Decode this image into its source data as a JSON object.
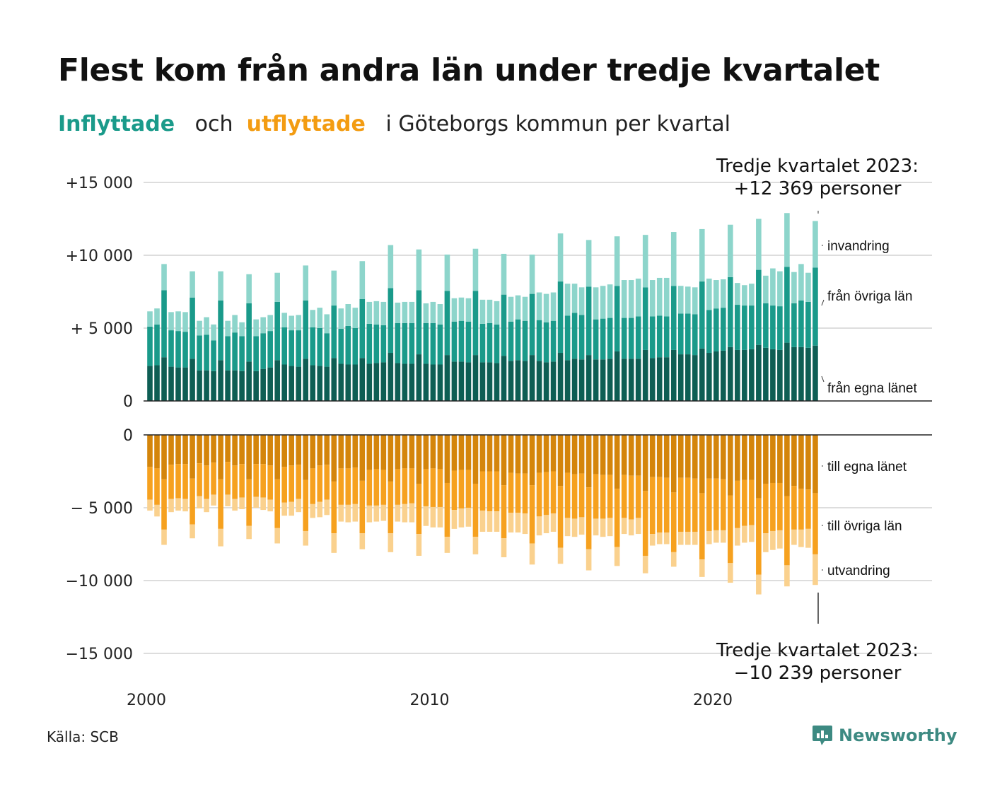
{
  "title": "Flest kom från andra län under tredje kvartalet",
  "subtitle": {
    "in_word": "Inflyttade",
    "and_word": "och",
    "out_word": "utflyttade",
    "rest": "i Göteborgs kommun per kvartal"
  },
  "colors": {
    "in_own": "#0e5e54",
    "in_other": "#1a9a8a",
    "in_imm": "#8dd5cb",
    "out_own": "#d4850b",
    "out_other": "#f6a11f",
    "out_emi": "#fad18e"
  },
  "annotation_top": {
    "line1": "Tredje kvartalet 2023:",
    "line2": "+12 369 personer"
  },
  "annotation_bottom": {
    "line1": "Tredje kvartalet 2023:",
    "line2": "−10 239 personer"
  },
  "source": "Källa: SCB",
  "brand": {
    "name": "Newsworthy",
    "icon": "newsworthy-logo-icon"
  },
  "chart_data": {
    "type": "bar",
    "stacked": true,
    "diverging": true,
    "x_start": "2000 Q1",
    "x_end": "2023 Q3",
    "x_tick_values": [
      2000,
      2010,
      2020
    ],
    "x_tick_labels": [
      "2000",
      "2010",
      "2020"
    ],
    "ylim_in": [
      0,
      15000
    ],
    "ylim_out": [
      -15000,
      0
    ],
    "y_ticks_in": [
      0,
      5000,
      10000,
      15000
    ],
    "y_tick_labels_in": [
      "0",
      "+ 5 000",
      "+10 000",
      "+15 000"
    ],
    "y_ticks_out": [
      0,
      -5000,
      -10000,
      -15000
    ],
    "y_tick_labels_out": [
      "0",
      "− 5 000",
      "−10 000",
      "−15 000"
    ],
    "grid": true,
    "series_in": [
      {
        "name": "från egna länet",
        "values": [
          2400,
          2450,
          3000,
          2350,
          2300,
          2300,
          2900,
          2100,
          2100,
          2050,
          2800,
          2100,
          2100,
          2050,
          2700,
          2050,
          2200,
          2300,
          2800,
          2500,
          2400,
          2350,
          2900,
          2450,
          2400,
          2350,
          2950,
          2550,
          2500,
          2500,
          2950,
          2550,
          2600,
          2650,
          3300,
          2600,
          2550,
          2550,
          3200,
          2550,
          2500,
          2500,
          3150,
          2700,
          2700,
          2650,
          3150,
          2650,
          2650,
          2600,
          3100,
          2750,
          2800,
          2750,
          3150,
          2750,
          2650,
          2700,
          3300,
          2800,
          2900,
          2850,
          3150,
          2850,
          2850,
          2900,
          3400,
          2900,
          2900,
          2900,
          3500,
          2950,
          3000,
          3000,
          3500,
          3200,
          3200,
          3150,
          3600,
          3300,
          3400,
          3450,
          3700,
          3500,
          3500,
          3550,
          3850,
          3650,
          3550,
          3500,
          4000,
          3700,
          3700,
          3650,
          3800
        ]
      },
      {
        "name": "från övriga län",
        "values": [
          2700,
          2800,
          4600,
          2500,
          2500,
          2450,
          4200,
          2400,
          2450,
          2100,
          4100,
          2350,
          2600,
          2400,
          4000,
          2400,
          2450,
          2500,
          4000,
          2550,
          2450,
          2500,
          4000,
          2600,
          2600,
          2300,
          3600,
          2400,
          2650,
          2500,
          4050,
          2750,
          2650,
          2550,
          4450,
          2750,
          2800,
          2800,
          4400,
          2800,
          2850,
          2750,
          4400,
          2750,
          2800,
          2800,
          4400,
          2650,
          2700,
          2650,
          4200,
          2700,
          2800,
          2750,
          4200,
          2800,
          2750,
          2800,
          4900,
          3050,
          3150,
          3050,
          4700,
          2750,
          2800,
          2800,
          4500,
          2800,
          2800,
          2900,
          4300,
          2850,
          2850,
          2800,
          4400,
          2800,
          2800,
          2800,
          4600,
          2950,
          2950,
          2950,
          4800,
          3100,
          3050,
          3000,
          5150,
          3050,
          3000,
          3000,
          5200,
          3000,
          3200,
          3150,
          5350
        ]
      },
      {
        "name": "invandring",
        "values": [
          1050,
          1100,
          1800,
          1250,
          1350,
          1350,
          1800,
          1000,
          1200,
          1100,
          2000,
          1050,
          1200,
          950,
          2000,
          1150,
          1100,
          1100,
          2000,
          1000,
          1000,
          1050,
          2400,
          1200,
          1400,
          1300,
          2400,
          1400,
          1500,
          1400,
          2600,
          1500,
          1600,
          1600,
          2950,
          1400,
          1450,
          1450,
          2800,
          1350,
          1450,
          1400,
          2500,
          1600,
          1600,
          1600,
          2900,
          1650,
          1600,
          1600,
          2800,
          1700,
          1650,
          1650,
          2700,
          1900,
          1950,
          1950,
          3300,
          2200,
          2000,
          1900,
          3200,
          2200,
          2250,
          2300,
          3400,
          2600,
          2600,
          2600,
          3600,
          2500,
          2600,
          2650,
          3700,
          1900,
          1850,
          1850,
          3600,
          2150,
          1950,
          1950,
          3600,
          1500,
          1400,
          1500,
          3500,
          1900,
          2550,
          2400,
          3700,
          2150,
          2500,
          2000,
          3200
        ]
      },
      {
        "name": "out_own",
        "values": [
          2200,
          2300,
          3050,
          2050,
          2000,
          2000,
          3000,
          1950,
          2100,
          1900,
          3050,
          1850,
          2100,
          2000,
          3050,
          2000,
          2000,
          2100,
          3050,
          2200,
          2100,
          2050,
          3100,
          2300,
          2100,
          2050,
          3200,
          2300,
          2300,
          2250,
          3150,
          2400,
          2350,
          2400,
          3200,
          2350,
          2300,
          2300,
          3350,
          2350,
          2300,
          2350,
          3300,
          2450,
          2400,
          2400,
          3350,
          2500,
          2500,
          2500,
          3450,
          2600,
          2650,
          2650,
          3450,
          2600,
          2550,
          2500,
          3500,
          2600,
          2700,
          2650,
          3600,
          2700,
          2750,
          2750,
          3700,
          2750,
          2800,
          2800,
          3850,
          2900,
          2900,
          2950,
          3950,
          2950,
          2950,
          3000,
          4000,
          3000,
          3000,
          3050,
          4150,
          3150,
          3100,
          3100,
          4350,
          3350,
          3300,
          3300,
          4200,
          3500,
          3700,
          3750,
          4000
        ]
      },
      {
        "name": "out_other",
        "values": [
          2250,
          2500,
          3450,
          2350,
          2350,
          2400,
          3150,
          2250,
          2300,
          2200,
          3400,
          2250,
          2300,
          2300,
          3200,
          2250,
          2300,
          2350,
          3350,
          2450,
          2500,
          2350,
          3500,
          2450,
          2500,
          2400,
          3550,
          2500,
          2500,
          2500,
          3600,
          2450,
          2500,
          2400,
          3550,
          2450,
          2450,
          2400,
          3450,
          2550,
          2650,
          2600,
          3700,
          2700,
          2650,
          2600,
          3650,
          2700,
          2750,
          2750,
          3650,
          2750,
          2700,
          2750,
          4000,
          3000,
          2950,
          2900,
          4250,
          3100,
          3050,
          3000,
          4250,
          3050,
          3000,
          2950,
          4000,
          2950,
          3000,
          2900,
          4450,
          3900,
          3800,
          3750,
          4100,
          3700,
          3700,
          3650,
          4550,
          3600,
          3550,
          3500,
          4650,
          3250,
          3150,
          3100,
          5250,
          3400,
          3300,
          3250,
          4750,
          3000,
          2800,
          2700,
          4200
        ]
      },
      {
        "name": "out_emi",
        "values": [
          750,
          800,
          1050,
          900,
          850,
          850,
          950,
          850,
          900,
          750,
          1200,
          800,
          800,
          800,
          900,
          750,
          850,
          800,
          1050,
          900,
          950,
          900,
          1000,
          950,
          1050,
          1050,
          1350,
          1150,
          1200,
          1200,
          1100,
          1150,
          1100,
          1100,
          1300,
          1150,
          1250,
          1300,
          1500,
          1350,
          1400,
          1400,
          1100,
          1300,
          1300,
          1300,
          1200,
          1450,
          1400,
          1400,
          1300,
          1350,
          1350,
          1400,
          1450,
          1300,
          1250,
          1250,
          1100,
          1250,
          1250,
          1200,
          1450,
          1150,
          1250,
          1250,
          1300,
          1100,
          1100,
          1100,
          1200,
          800,
          800,
          800,
          1000,
          900,
          900,
          900,
          1200,
          900,
          850,
          850,
          1350,
          1200,
          1150,
          1150,
          1350,
          1300,
          1300,
          1250,
          1450,
          1050,
          1200,
          1300,
          2100
        ]
      }
    ],
    "legend_in": [
      "invandring",
      "från övriga län",
      "från egna länet"
    ],
    "legend_out": [
      "till egna länet",
      "till övriga län",
      "utvandring"
    ]
  }
}
